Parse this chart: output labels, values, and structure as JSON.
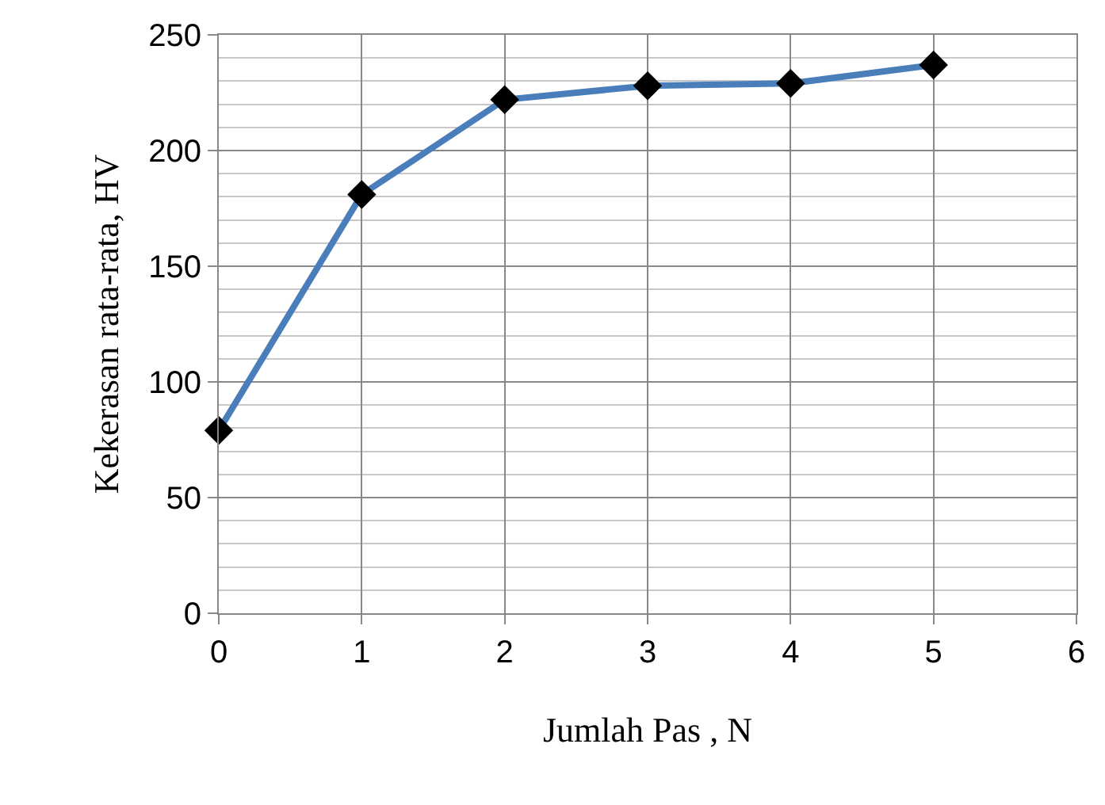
{
  "chart_data": {
    "type": "line",
    "xlabel": "Jumlah Pas , N",
    "ylabel": "Kekerasan rata-rata, HV",
    "x": [
      0,
      1,
      2,
      3,
      4,
      5
    ],
    "series": [
      {
        "color": "#4a7ebb",
        "values": [
          79,
          181,
          222,
          228,
          229,
          237
        ]
      }
    ],
    "xlim": [
      0,
      6
    ],
    "xticks": [
      0,
      1,
      2,
      3,
      4,
      5,
      6
    ],
    "ylim": [
      0,
      250
    ],
    "yticks": [
      0,
      50,
      100,
      150,
      200,
      250
    ],
    "grid": true,
    "marker": "diamond",
    "line_style": "solid"
  }
}
